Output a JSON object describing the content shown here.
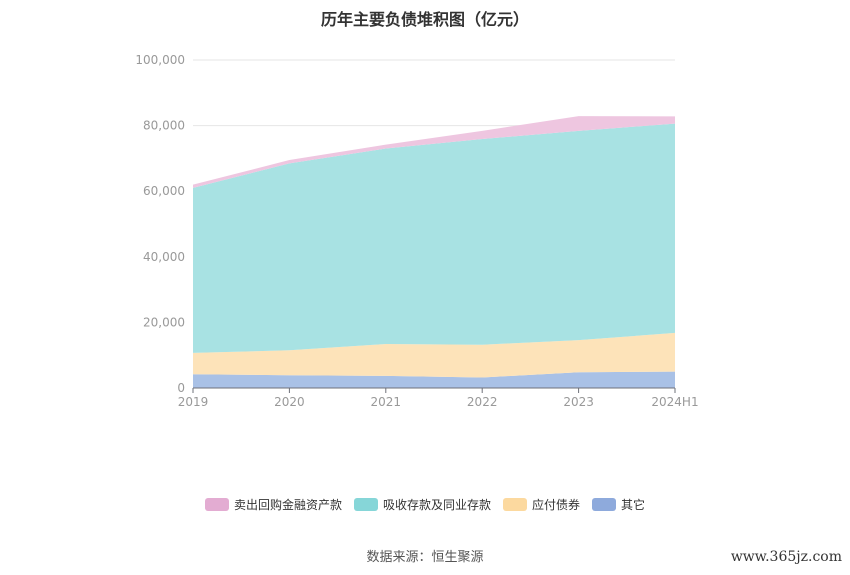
{
  "chart_data": {
    "type": "area",
    "stacked": true,
    "title": "历年主要负债堆积图（亿元）",
    "categories": [
      "2019",
      "2020",
      "2021",
      "2022",
      "2023",
      "2024H1"
    ],
    "series": [
      {
        "name": "其它",
        "color": "#a9c1e6",
        "legend_color": "#8eaadc",
        "values": [
          4200,
          3900,
          3700,
          3200,
          4800,
          5000
        ]
      },
      {
        "name": "应付债券",
        "color": "#fde3b9",
        "legend_color": "#fcd99f",
        "values": [
          6500,
          7600,
          9700,
          10000,
          9800,
          11800
        ]
      },
      {
        "name": "吸收存款及同业存款",
        "color": "#a8e2e3",
        "legend_color": "#86d6d8",
        "values": [
          50300,
          57000,
          59600,
          62700,
          63800,
          63800
        ]
      },
      {
        "name": "卖出回购金融资产款",
        "color": "#eec6e0",
        "legend_color": "#e3acd2",
        "values": [
          1000,
          1000,
          1200,
          2500,
          4500,
          2200
        ]
      }
    ],
    "yticks": [
      "0",
      "20,000",
      "40,000",
      "60,000",
      "80,000",
      "100,000"
    ],
    "ylim": [
      0,
      100000
    ],
    "grid": true,
    "legend_position": "bottom"
  },
  "source": "数据来源：恒生聚源",
  "watermark": "www.365jz.com"
}
